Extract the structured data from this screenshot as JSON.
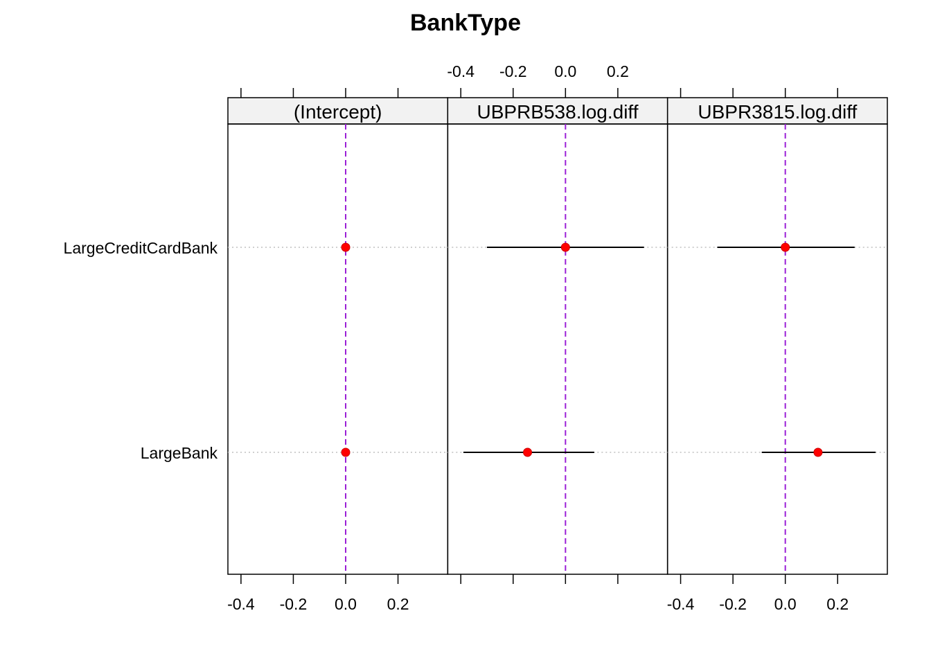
{
  "chart_data": {
    "type": "dotplot",
    "title": "BankType",
    "xlim": [
      -0.45,
      0.39
    ],
    "ticks": [
      -0.4,
      -0.2,
      0.0,
      0.2
    ],
    "tick_labels": [
      "-0.4",
      "-0.2",
      "0.0",
      "0.2"
    ],
    "rows": [
      "LargeCreditCardBank",
      "LargeBank"
    ],
    "panels": [
      {
        "name": "(Intercept)",
        "points": [
          {
            "row": "LargeCreditCardBank",
            "value": 0.0,
            "lower": 0.0,
            "upper": 0.0
          },
          {
            "row": "LargeBank",
            "value": 0.0,
            "lower": 0.0,
            "upper": 0.0
          }
        ]
      },
      {
        "name": "UBPRB538.log.diff",
        "points": [
          {
            "row": "LargeCreditCardBank",
            "value": 0.0,
            "lower": -0.3,
            "upper": 0.3
          },
          {
            "row": "LargeBank",
            "value": -0.145,
            "lower": -0.39,
            "upper": 0.11
          }
        ]
      },
      {
        "name": "UBPR3815.log.diff",
        "points": [
          {
            "row": "LargeCreditCardBank",
            "value": 0.0,
            "lower": -0.26,
            "upper": 0.265
          },
          {
            "row": "LargeBank",
            "value": 0.125,
            "lower": -0.09,
            "upper": 0.345
          }
        ]
      }
    ],
    "reference_line": 0.0,
    "colors": {
      "point": "#ff0000",
      "reference_line": "#9a1fd6",
      "interval": "#000000",
      "row_guide": "#bfbfbf",
      "strip_fill": "#f2f2f2"
    }
  }
}
